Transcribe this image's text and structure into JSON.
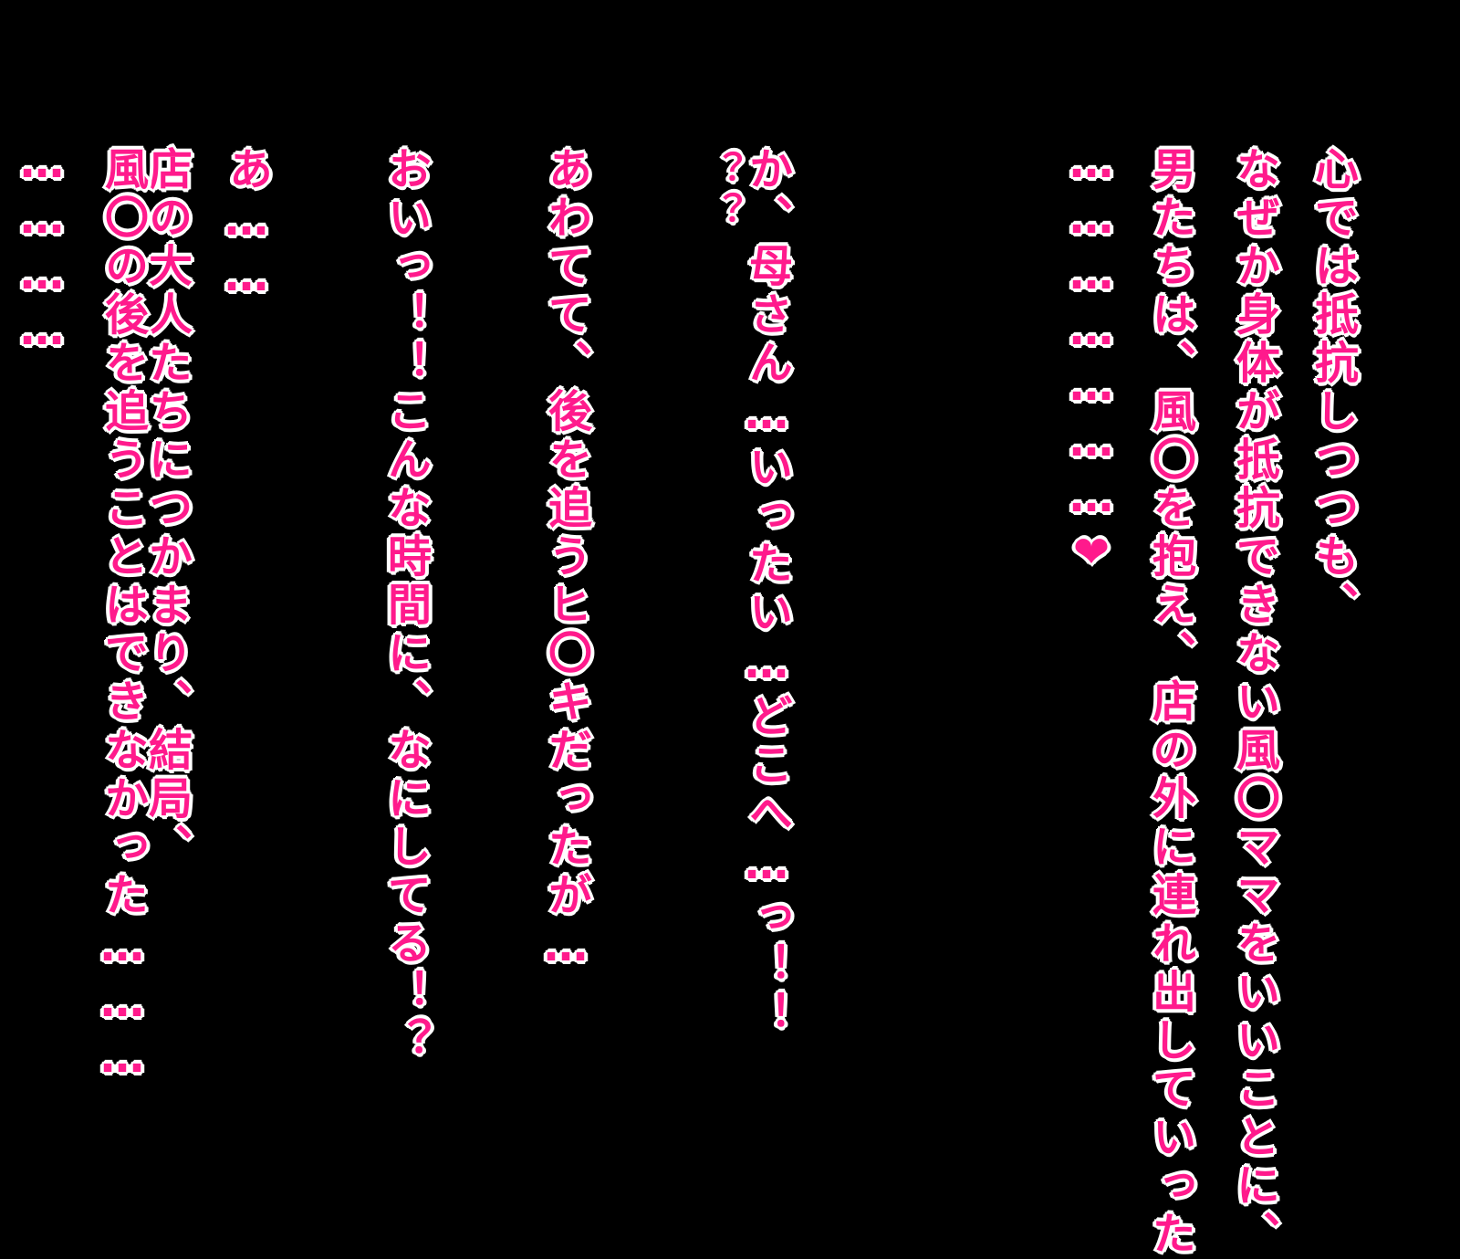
{
  "text_color": "#ff1a8c",
  "outline_color": "#ffffff",
  "background_color": "#000000",
  "lines": [
    "心では抵抗しつつも、",
    "なぜか身体が抵抗できない風〇ママをいいことに、",
    "男たちは、風〇を抱え、店の外に連れ出していった",
    "…………………",
    "か、母さん…いったい…どこへ…っ！！",
    "？？",
    "あわてて、後を追うヒ〇キだったが…",
    "おいっ！！こんな時間に、なにしてる！？",
    "あ……",
    "店の大人たちにつかまり、結局、",
    "風〇の後を追うことはできなかった………",
    "…………"
  ],
  "heart_glyph": "❤"
}
